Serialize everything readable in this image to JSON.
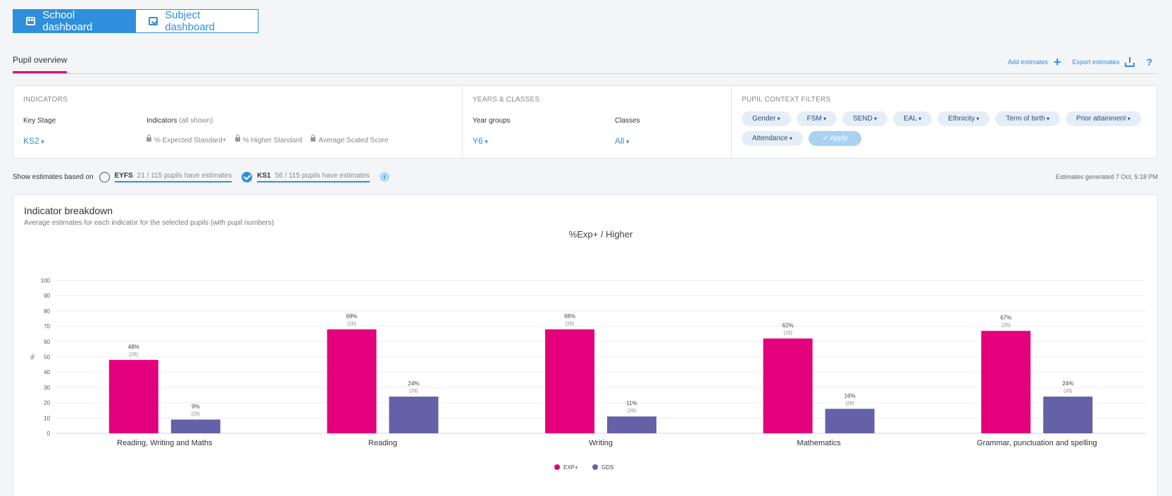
{
  "top_tabs": [
    {
      "label": "School dashboard",
      "icon": "dashboard-icon",
      "active": true
    },
    {
      "label": "Subject dashboard",
      "icon": "book-icon",
      "active": false
    }
  ],
  "subnav": {
    "tab": "Pupil overview",
    "add_estimates": "Add estimates",
    "export_estimates": "Export estimates",
    "help": "?"
  },
  "indicators": {
    "title": "INDICATORS",
    "key_stage_label": "Key Stage",
    "key_stage_value": "KS2",
    "indicators_label": "Indicators",
    "indicators_note": "(all shown)",
    "items": [
      "% Expected Standard+",
      "% Higher Standard",
      "Average Scaled Score"
    ]
  },
  "years_classes": {
    "title": "YEARS & CLASSES",
    "year_groups_label": "Year groups",
    "year_groups_value": "Y6",
    "classes_label": "Classes",
    "classes_value": "All"
  },
  "context_filters": {
    "title": "PUPIL CONTEXT FILTERS",
    "pills": [
      "Gender",
      "FSM",
      "SEND",
      "EAL",
      "Ethnicity",
      "Term of birth",
      "Prior attainment",
      "Attendance"
    ],
    "apply_label": "Apply"
  },
  "estimates": {
    "label": "Show estimates based on",
    "options": [
      {
        "name": "EYFS",
        "note": "21 / 115 pupils have estimates",
        "selected": false
      },
      {
        "name": "KS1",
        "note": "56 / 115 pupils have estimates",
        "selected": true
      }
    ],
    "info": "i",
    "generated": "Estimates generated 7 Oct, 5:18 PM"
  },
  "card": {
    "title": "Indicator breakdown",
    "subtitle": "Average estimates for each indicator for the selected pupils (with pupil numbers)"
  },
  "chart_data": {
    "type": "bar",
    "title": "%Exp+ / Higher",
    "ylabel": "%",
    "xlabel": "",
    "ylim": [
      0,
      100
    ],
    "yticks": [
      0,
      10,
      20,
      30,
      40,
      50,
      60,
      70,
      80,
      90,
      100
    ],
    "grid": true,
    "legend": "bottom-center",
    "categories": [
      "Reading, Writing and Maths",
      "Reading",
      "Writing",
      "Mathematics",
      "Grammar, punctuation and spelling"
    ],
    "series": [
      {
        "name": "EXP+",
        "color": "#e4007c",
        "values": [
          48,
          68,
          68,
          62,
          67
        ],
        "counts": [
          "(26)",
          "(26)",
          "(26)",
          "(26)",
          "(26)"
        ]
      },
      {
        "name": "GDS",
        "color": "#6461a8",
        "values": [
          9,
          24,
          11,
          16,
          24
        ],
        "counts": [
          "(26)",
          "(26)",
          "(26)",
          "(26)",
          "(26)"
        ]
      }
    ]
  }
}
